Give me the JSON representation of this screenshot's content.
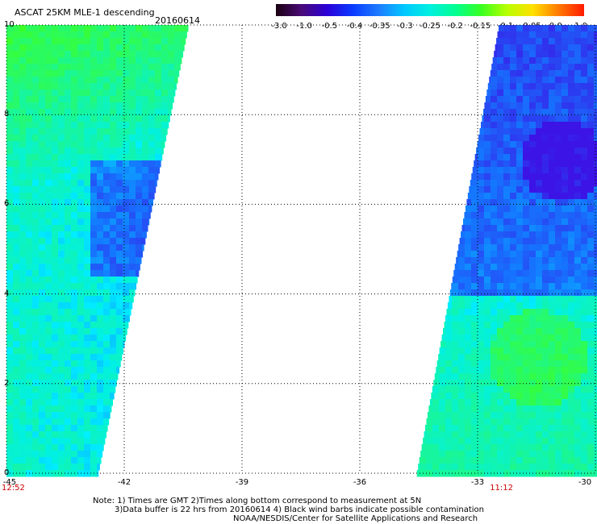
{
  "header": {
    "title": "ASCAT 25KM MLE-1 descending",
    "date": "20160614"
  },
  "colorbar": {
    "labels": [
      "-3.0",
      "-1.0",
      "-0.5",
      "-0.4",
      "-0.35",
      "-0.3",
      "-0.25",
      "-0.2",
      "-0.15",
      "-0.1",
      "-0.05",
      "0.0",
      "1.0"
    ],
    "colors": [
      "#1a0010",
      "#4a0a78",
      "#2a00d8",
      "#0a3cff",
      "#1e7cff",
      "#00c8ff",
      "#00f0e0",
      "#00ff90",
      "#38ff20",
      "#b8ff00",
      "#ffe000",
      "#ff7a00",
      "#ff1a00"
    ]
  },
  "map": {
    "x_ticks": [
      "-45",
      "-42",
      "-39",
      "-36",
      "-33",
      "-30"
    ],
    "y_ticks": [
      "0",
      "2",
      "4",
      "6",
      "8",
      "10"
    ],
    "lon_range": [
      -45,
      -30
    ],
    "lat_range": [
      0,
      10
    ],
    "grid": "dotted",
    "swaths": [
      {
        "side": "west",
        "lon_min": -45,
        "lat_min": 0,
        "lat_max": 10
      },
      {
        "side": "east",
        "lon_max": -30,
        "lat_min": 0,
        "lat_max": 10
      }
    ],
    "time_labels": [
      {
        "text": "12:52",
        "lon": -45
      },
      {
        "text": "11:12",
        "lon": -32.4
      }
    ]
  },
  "notes": {
    "line1": "Note: 1) Times are GMT 2)Times along bottom correspond to measurement at 5N",
    "line2": "3)Data buffer is 22 hrs from 20160614 4) Black wind barbs indicate possible contamination",
    "line3": "NOAA/NESDIS/Center for Satellite Applications and Research"
  }
}
